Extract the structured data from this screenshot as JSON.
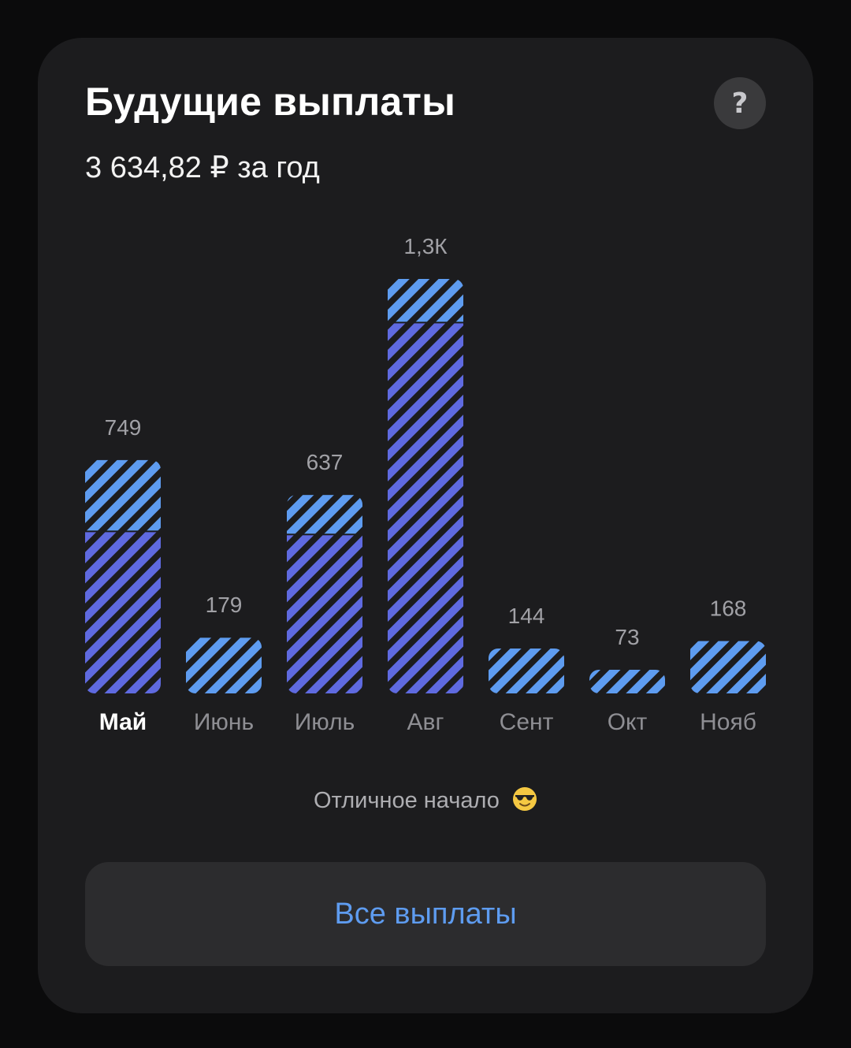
{
  "header": {
    "title": "Будущие выплаты",
    "subtitle": "3 634,82 ₽ за год",
    "help_label": "?"
  },
  "colors": {
    "card_bg": "#1c1c1e",
    "bar_upper": "#5e9cf0",
    "bar_lower": "#5f6ae0",
    "accent_link": "#5e9cf0"
  },
  "chart_data": {
    "type": "bar",
    "stacked": true,
    "categories": [
      "Май",
      "Июнь",
      "Июль",
      "Авг",
      "Сент",
      "Окт",
      "Нояб"
    ],
    "data_labels": [
      "749",
      "179",
      "637",
      "1,3К",
      "144",
      "73",
      "168"
    ],
    "series": [
      {
        "values": [
          520,
          0,
          510,
          1190,
          0,
          0,
          0
        ]
      },
      {
        "values": [
          229,
          179,
          127,
          140,
          144,
          73,
          168
        ]
      }
    ],
    "totals": [
      749,
      179,
      637,
      1330,
      144,
      73,
      168
    ],
    "active_category": "Май"
  },
  "footer": {
    "note": "Отличное начало",
    "note_icon": "sunglasses-emoji-icon",
    "all_payments_label": "Все выплаты"
  }
}
